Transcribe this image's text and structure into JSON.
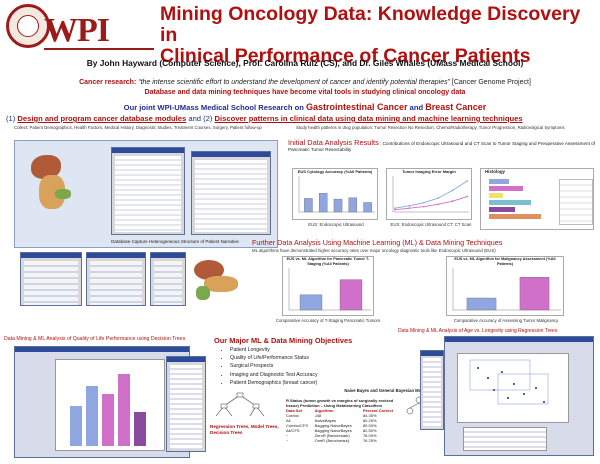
{
  "header": {
    "logo_text": "WPI",
    "title_line1": "Mining Oncology Data: Knowledge Discovery in",
    "title_line2": "Clinical Performance of Cancer Patients",
    "authors": "By John Hayward (Computer Science), Prof. Carolina Ruiz (CS), and Dr. Giles Whales (UMass Medical School)"
  },
  "banner": {
    "label": "Cancer research:",
    "quote": "“the intense scientific effort to understand the development of cancer and identify potential therapies”",
    "source": "[Cancer Genome Project]",
    "line2": "Database and data mining techniques have become vital tools in studying clinical oncology data"
  },
  "research": {
    "lead": "Our joint WPI-UMass Medical School Research on",
    "topic1": "Gastrointestinal Cancer",
    "and": "and",
    "topic2": "Breast Cancer",
    "goal1_num": "(1)",
    "goal1": "Design and program cancer database modules",
    "goal2_num": "and (2)",
    "goal2": "Discover patterns in clinical data using data mining and machine learning techniques",
    "collect": "Collect: Patient Demographics, Health Factors, Medical History, Diagnostic Studies, Treatment Courses, Surgery, Patient follow-up",
    "study": "Study health patterns in drug population: Tumor Resection No Resection, Chemo/Radiotherapy, Tumor Progression, Radiovolgical Symptoms"
  },
  "left_panel": {
    "db_caption": "Database Capture Heterogeneous Structure of Patient Narrative"
  },
  "initial": {
    "heading": "Initial Data Analysis Results",
    "text": ": Contributions of Endoscopic Ultrasound and CT Scan to Tumor Staging and Preoperative Assessment of Pancreatic Tumor Resectability",
    "chart1_title": "EUS Cytology Accuracy (%All Patients)",
    "chart1_caption": "EUS: Endoscopic Ultrasound",
    "chart2_title": "Tumor Imaging Error Margin",
    "chart2_caption": "EUS: Endoscopic Ultrasound    CT: CT Scan",
    "chart3_title": "Histology"
  },
  "further": {
    "heading": "Further Data Analysis Using Machine Learning (ML) & Data Mining Techniques",
    "text": "ML algorithms have demonstrated higher accuracy rates over major oncology diagnostic tools like Endoscopic Ultrasound (EUS)",
    "chart1_title": "EUS vs. ML Algorithm for Pancreatic Tumor T-Staging (%All Patients)",
    "chart1_caption": "Comparative Accuracy of T-Staging Pancreatic Tumors",
    "chart2_title": "EUS vs. ML Algorithm for Malignancy Assessment (%All Patients)",
    "chart2_caption": "Comparative Accuracy of Assessing Tumor Malignancy"
  },
  "bottom_left": {
    "heading": "Data Mining & ML Analysis of Quality of Life Performance using Decision Trees"
  },
  "objectives": {
    "heading": "Our Major ML & Data Mining Objectives",
    "items": [
      "Patient Longevity",
      "Quality of Life/Performance Status",
      "Surgical Prospects",
      "Imaging and Diagnostic Test Accuracy",
      "Patient Demographics (breast cancer)"
    ],
    "tree_caption": "Regression Trees, Model Trees, Decision Trees",
    "bayes_caption": "Naive Bayes and General Bayesian Models",
    "table_title": "R Status (tumor growth vs margins of surgically excised tissue) Prediction – Using Metalearning Classifiers",
    "table_headers": [
      "Data Set",
      "Algorithm",
      "Percent Correct"
    ],
    "table_rows": [
      [
        "Combo",
        "J48",
        "84.35%"
      ],
      [
        "All",
        "NaiveBayes",
        "80.25%"
      ],
      [
        "Combo/CFS",
        "Bagging NaiveBayes",
        "80.00%"
      ],
      [
        "All/CFS",
        "Bagging NaiveBayes",
        "82.50%"
      ],
      [
        "~",
        "ZeroR (Benchmark)",
        "76.00%"
      ],
      [
        "~",
        "OneR (Benchmark)",
        "76.25%"
      ]
    ]
  },
  "bottom_right": {
    "heading": "Data Mining & ML Analysis of Age vs. Longevity using Regression Trees"
  },
  "colors": {
    "title_red": "#b01010",
    "navy": "#1a2f8c",
    "bar_blue": "#8fa6e0",
    "bar_pink": "#d070c8"
  },
  "chart_data": [
    {
      "type": "bar",
      "title": "EUS Cytology Accuracy (%All Patients)",
      "categories": [
        "",
        "",
        "",
        "",
        ""
      ],
      "values": [
        40,
        55,
        38,
        42,
        28
      ],
      "ylim": [
        0,
        100
      ]
    },
    {
      "type": "line",
      "title": "Tumor Imaging Error Margin",
      "series": [
        {
          "values": [
            5,
            8,
            12,
            18,
            28,
            40
          ]
        },
        {
          "values": [
            3,
            5,
            7,
            10,
            14,
            20
          ]
        }
      ]
    },
    {
      "type": "bar",
      "title": "EUS vs. ML Algorithm for Pancreatic Tumor T-Staging (%All Patients)",
      "categories": [
        "",
        ""
      ],
      "values": [
        38,
        76
      ],
      "ylim": [
        0,
        100
      ]
    },
    {
      "type": "bar",
      "title": "EUS vs. ML Algorithm for Malignancy Assessment (%All Patients)",
      "categories": [
        "",
        ""
      ],
      "values": [
        30,
        82
      ],
      "ylim": [
        0,
        100
      ]
    }
  ]
}
